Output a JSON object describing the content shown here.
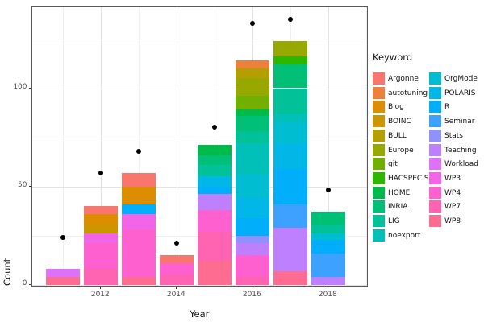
{
  "axes": {
    "x_title": "Year",
    "y_title": "Count",
    "x_tick_labels": [
      "2012",
      "2014",
      "2016",
      "2018"
    ],
    "y_tick_labels": [
      "0",
      "50",
      "100"
    ]
  },
  "legend": {
    "title": "Keyword"
  },
  "chart_data": {
    "type": "bar",
    "stacked": true,
    "title": "",
    "xlabel": "Year",
    "ylabel": "Count",
    "x_years": [
      2011,
      2012,
      2013,
      2014,
      2015,
      2016,
      2017,
      2018
    ],
    "x_major_ticks": [
      2012,
      2014,
      2016,
      2018
    ],
    "x_minor_ticks": [
      2011,
      2013,
      2015,
      2017,
      2019
    ],
    "y_major_ticks": [
      0,
      50,
      100
    ],
    "y_minor_ticks": [
      25,
      75,
      125
    ],
    "ylim": [
      0,
      141
    ],
    "grid": true,
    "legend_position": "right",
    "legend_title": "Keyword",
    "keywords": [
      {
        "name": "Argonne",
        "color": "#F8766D"
      },
      {
        "name": "autotuning",
        "color": "#EC813C"
      },
      {
        "name": "Blog",
        "color": "#DD8D00"
      },
      {
        "name": "BOINC",
        "color": "#CA9700"
      },
      {
        "name": "BULL",
        "color": "#B3A000"
      },
      {
        "name": "Europe",
        "color": "#97A900"
      },
      {
        "name": "git",
        "color": "#71B000"
      },
      {
        "name": "HACSPECIS",
        "color": "#2FB600"
      },
      {
        "name": "HOME",
        "color": "#00BB4B"
      },
      {
        "name": "INRIA",
        "color": "#00BF76"
      },
      {
        "name": "LIG",
        "color": "#00C198"
      },
      {
        "name": "noexport",
        "color": "#00C0B7"
      },
      {
        "name": "OrgMode",
        "color": "#00BDD1"
      },
      {
        "name": "POLARIS",
        "color": "#00B7E8"
      },
      {
        "name": "R",
        "color": "#00AEFA"
      },
      {
        "name": "Seminar",
        "color": "#3DA1FF"
      },
      {
        "name": "Stats",
        "color": "#8F91FF"
      },
      {
        "name": "Teaching",
        "color": "#BE80FF"
      },
      {
        "name": "Workload",
        "color": "#DE71F9"
      },
      {
        "name": "WP3",
        "color": "#F265E7"
      },
      {
        "name": "WP4",
        "color": "#FE61CF"
      },
      {
        "name": "WP7",
        "color": "#FF64B3"
      },
      {
        "name": "WP8",
        "color": "#FF6C92"
      }
    ],
    "bars": [
      {
        "year": 2011,
        "total": 8,
        "segments": [
          {
            "keyword": "WP8",
            "value": 4
          },
          {
            "keyword": "Workload",
            "value": 4
          }
        ]
      },
      {
        "year": 2012,
        "total": 40,
        "segments": [
          {
            "keyword": "WP7",
            "value": 8
          },
          {
            "keyword": "WP4",
            "value": 13
          },
          {
            "keyword": "WP3",
            "value": 5
          },
          {
            "keyword": "BOINC",
            "value": 4
          },
          {
            "keyword": "Blog",
            "value": 6
          },
          {
            "keyword": "Argonne",
            "value": 4
          }
        ]
      },
      {
        "year": 2013,
        "total": 57,
        "segments": [
          {
            "keyword": "WP8",
            "value": 4
          },
          {
            "keyword": "WP4",
            "value": 24
          },
          {
            "keyword": "WP3",
            "value": 8
          },
          {
            "keyword": "R",
            "value": 5
          },
          {
            "keyword": "Blog",
            "value": 9
          },
          {
            "keyword": "Argonne",
            "value": 7
          }
        ]
      },
      {
        "year": 2014,
        "total": 15,
        "segments": [
          {
            "keyword": "WP7",
            "value": 5
          },
          {
            "keyword": "WP4",
            "value": 6
          },
          {
            "keyword": "Argonne",
            "value": 4
          }
        ]
      },
      {
        "year": 2015,
        "total": 71,
        "segments": [
          {
            "keyword": "WP8",
            "value": 12
          },
          {
            "keyword": "WP7",
            "value": 15
          },
          {
            "keyword": "WP4",
            "value": 11
          },
          {
            "keyword": "Teaching",
            "value": 8
          },
          {
            "keyword": "R",
            "value": 4
          },
          {
            "keyword": "POLARIS",
            "value": 5
          },
          {
            "keyword": "LIG",
            "value": 6
          },
          {
            "keyword": "INRIA",
            "value": 5
          },
          {
            "keyword": "HOME",
            "value": 5
          }
        ]
      },
      {
        "year": 2016,
        "total": 114,
        "segments": [
          {
            "keyword": "WP7",
            "value": 4
          },
          {
            "keyword": "WP4",
            "value": 11
          },
          {
            "keyword": "Teaching",
            "value": 6
          },
          {
            "keyword": "Stats",
            "value": 4
          },
          {
            "keyword": "R",
            "value": 9
          },
          {
            "keyword": "POLARIS",
            "value": 10
          },
          {
            "keyword": "OrgMode",
            "value": 12
          },
          {
            "keyword": "noexport",
            "value": 16
          },
          {
            "keyword": "LIG",
            "value": 6
          },
          {
            "keyword": "INRIA",
            "value": 8
          },
          {
            "keyword": "HOME",
            "value": 3
          },
          {
            "keyword": "git",
            "value": 7
          },
          {
            "keyword": "Europe",
            "value": 9
          },
          {
            "keyword": "BULL",
            "value": 5
          },
          {
            "keyword": "autotuning",
            "value": 4
          }
        ]
      },
      {
        "year": 2017,
        "total": 124,
        "segments": [
          {
            "keyword": "WP8",
            "value": 7
          },
          {
            "keyword": "Teaching",
            "value": 22
          },
          {
            "keyword": "Seminar",
            "value": 12
          },
          {
            "keyword": "R",
            "value": 18
          },
          {
            "keyword": "POLARIS",
            "value": 13
          },
          {
            "keyword": "OrgMode",
            "value": 11
          },
          {
            "keyword": "noexport",
            "value": 4
          },
          {
            "keyword": "LIG",
            "value": 13
          },
          {
            "keyword": "INRIA",
            "value": 12
          },
          {
            "keyword": "HACSPECIS",
            "value": 4
          },
          {
            "keyword": "Europe",
            "value": 8
          }
        ]
      },
      {
        "year": 2018,
        "total": 37,
        "segments": [
          {
            "keyword": "Teaching",
            "value": 4
          },
          {
            "keyword": "Seminar",
            "value": 12
          },
          {
            "keyword": "R",
            "value": 7
          },
          {
            "keyword": "OrgMode",
            "value": 3
          },
          {
            "keyword": "LIG",
            "value": 4
          },
          {
            "keyword": "INRIA",
            "value": 7
          }
        ]
      }
    ],
    "points": [
      {
        "year": 2011,
        "value": 24
      },
      {
        "year": 2012,
        "value": 57
      },
      {
        "year": 2013,
        "value": 68
      },
      {
        "year": 2014,
        "value": 21
      },
      {
        "year": 2015,
        "value": 80
      },
      {
        "year": 2016,
        "value": 133
      },
      {
        "year": 2017,
        "value": 135
      },
      {
        "year": 2018,
        "value": 48
      }
    ]
  }
}
